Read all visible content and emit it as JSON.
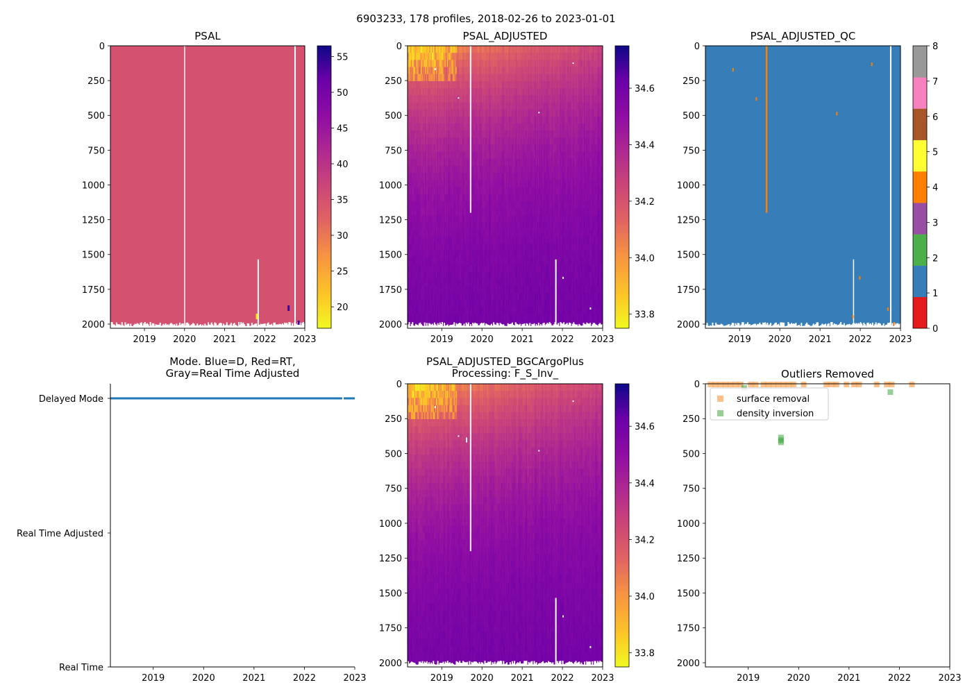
{
  "suptitle": "6903233, 178 profiles, 2018-02-26 to 2023-01-01",
  "colors": {
    "psal_fill": "#d14e64",
    "qc_fill": "#377eb8",
    "mode_line": "#1f77b4",
    "surface_removal": "#ff7f0e",
    "density_inversion": "#2ca02c"
  },
  "chart_data": [
    {
      "id": "psal",
      "type": "heatmap",
      "title": "PSAL",
      "x_ticks": [
        "2019",
        "2020",
        "2021",
        "2022",
        "2023"
      ],
      "xlim": [
        2018.15,
        2023.0
      ],
      "y_ticks": [
        "0",
        "250",
        "500",
        "750",
        "1000",
        "1250",
        "1500",
        "1750",
        "2000"
      ],
      "ylim": [
        2030,
        0
      ],
      "colormap": "plasma_r",
      "colorbar_ticks": [
        "20",
        "25",
        "30",
        "35",
        "40",
        "45",
        "50",
        "55"
      ],
      "colorbar_range": [
        17,
        56.5
      ],
      "typical_value": 34.9
    },
    {
      "id": "psal_adj",
      "type": "heatmap",
      "title": "PSAL_ADJUSTED",
      "x_ticks": [
        "2019",
        "2020",
        "2021",
        "2022",
        "2023"
      ],
      "xlim": [
        2018.15,
        2023.0
      ],
      "y_ticks": [
        "0",
        "250",
        "500",
        "750",
        "1000",
        "1250",
        "1500",
        "1750",
        "2000"
      ],
      "ylim": [
        2030,
        0
      ],
      "colormap": "plasma_r",
      "colorbar_ticks": [
        "33.8",
        "34.0",
        "34.2",
        "34.4",
        "34.6"
      ],
      "colorbar_range": [
        33.75,
        34.75
      ]
    },
    {
      "id": "psal_qc",
      "type": "heatmap",
      "title": "PSAL_ADJUSTED_QC",
      "x_ticks": [
        "2019",
        "2020",
        "2021",
        "2022",
        "2023"
      ],
      "xlim": [
        2018.15,
        2023.0
      ],
      "y_ticks": [
        "0",
        "250",
        "500",
        "750",
        "1000",
        "1250",
        "1500",
        "1750",
        "2000"
      ],
      "ylim": [
        2030,
        0
      ],
      "colormap": "Set1",
      "colorbar_ticks": [
        "0",
        "1",
        "2",
        "3",
        "4",
        "5",
        "6",
        "7",
        "8"
      ],
      "colorbar_range": [
        0,
        8
      ],
      "qc_colors": [
        "#e41a1c",
        "#377eb8",
        "#4daf4a",
        "#984ea3",
        "#ff7f00",
        "#ffff33",
        "#a65628",
        "#f781bf",
        "#999999"
      ],
      "dominant_flag": 1
    },
    {
      "id": "mode",
      "type": "line",
      "title": "Mode. Blue=D, Red=RT,",
      "title_line2": "Gray=Real Time Adjusted",
      "x_ticks": [
        "2019",
        "2020",
        "2021",
        "2022",
        "2023"
      ],
      "xlim": [
        2018.15,
        2023.0
      ],
      "y_categories": [
        "Delayed Mode",
        "Real Time Adjusted",
        "Real Time"
      ],
      "series": [
        {
          "name": "D",
          "mode": "Delayed Mode",
          "x": [
            2018.15,
            2022.75,
            2022.78,
            2023.0
          ]
        }
      ]
    },
    {
      "id": "psal_bgc",
      "type": "heatmap",
      "title": "PSAL_ADJUSTED_BGCArgoPlus",
      "title_line2": "Processing: F_S_Inv_",
      "x_ticks": [
        "2019",
        "2020",
        "2021",
        "2022",
        "2023"
      ],
      "xlim": [
        2018.15,
        2023.0
      ],
      "y_ticks": [
        "0",
        "250",
        "500",
        "750",
        "1000",
        "1250",
        "1500",
        "1750",
        "2000"
      ],
      "ylim": [
        2030,
        0
      ],
      "colormap": "plasma_r",
      "colorbar_ticks": [
        "33.8",
        "34.0",
        "34.2",
        "34.4",
        "34.6"
      ],
      "colorbar_range": [
        33.75,
        34.75
      ]
    },
    {
      "id": "outliers",
      "type": "scatter",
      "title": "Outliers Removed",
      "x_ticks": [
        "2019",
        "2020",
        "2021",
        "2022",
        "2023"
      ],
      "xlim": [
        2018.15,
        2023.0
      ],
      "y_ticks": [
        "0",
        "250",
        "500",
        "750",
        "1000",
        "1250",
        "1500",
        "1750",
        "2000"
      ],
      "ylim": [
        2030,
        0
      ],
      "legend": [
        "surface removal",
        "density inversion"
      ],
      "series": [
        {
          "name": "surface removal",
          "x": [
            2018.25,
            2018.35,
            2018.45,
            2018.55,
            2018.65,
            2018.75,
            2018.85,
            2019.05,
            2019.15,
            2019.3,
            2019.4,
            2019.5,
            2019.6,
            2019.7,
            2019.8,
            2019.9,
            2020.1,
            2020.55,
            2020.65,
            2020.75,
            2020.95,
            2021.1,
            2021.2,
            2021.55,
            2021.75,
            2021.85,
            2022.25
          ],
          "y": [
            5,
            5,
            5,
            5,
            5,
            5,
            5,
            5,
            5,
            5,
            5,
            5,
            5,
            5,
            5,
            5,
            5,
            5,
            5,
            5,
            5,
            5,
            5,
            5,
            5,
            5,
            5
          ]
        },
        {
          "name": "density inversion",
          "x": [
            2018.92,
            2019.65,
            2019.65,
            2019.65,
            2021.82
          ],
          "y": [
            30,
            385,
            405,
            420,
            60
          ]
        }
      ]
    }
  ]
}
